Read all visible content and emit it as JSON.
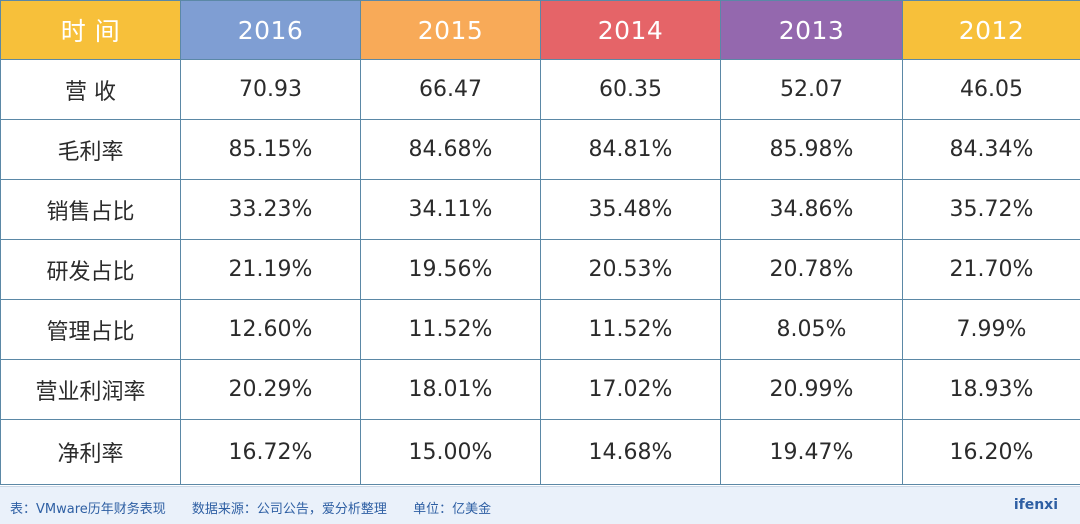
{
  "table": {
    "headers": [
      {
        "label": "时 间",
        "color": "#f7c03a"
      },
      {
        "label": "2016",
        "color": "#7f9ed3"
      },
      {
        "label": "2015",
        "color": "#f8aa58"
      },
      {
        "label": "2014",
        "color": "#e56468"
      },
      {
        "label": "2013",
        "color": "#9468ae"
      },
      {
        "label": "2012",
        "color": "#f7c03a"
      }
    ],
    "rows": [
      {
        "label": "营 收",
        "values": [
          "70.93",
          "66.47",
          "60.35",
          "52.07",
          "46.05"
        ]
      },
      {
        "label": "毛利率",
        "values": [
          "85.15%",
          "84.68%",
          "84.81%",
          "85.98%",
          "84.34%"
        ]
      },
      {
        "label": "销售占比",
        "values": [
          "33.23%",
          "34.11%",
          "35.48%",
          "34.86%",
          "35.72%"
        ]
      },
      {
        "label": "研发占比",
        "values": [
          "21.19%",
          "19.56%",
          "20.53%",
          "20.78%",
          "21.70%"
        ]
      },
      {
        "label": "管理占比",
        "values": [
          "12.60%",
          "11.52%",
          "11.52%",
          "8.05%",
          "7.99%"
        ]
      },
      {
        "label": "营业利润率",
        "values": [
          "20.29%",
          "18.01%",
          "17.02%",
          "20.99%",
          "18.93%"
        ]
      },
      {
        "label": "净利率",
        "values": [
          "16.72%",
          "15.00%",
          "14.68%",
          "19.47%",
          "16.20%"
        ]
      }
    ]
  },
  "footer": {
    "caption_table": "表：VMware历年财务表现",
    "caption_source": "数据来源：公司公告，爱分析整理",
    "caption_unit": "单位：亿美金",
    "logo": "ifenxi"
  }
}
